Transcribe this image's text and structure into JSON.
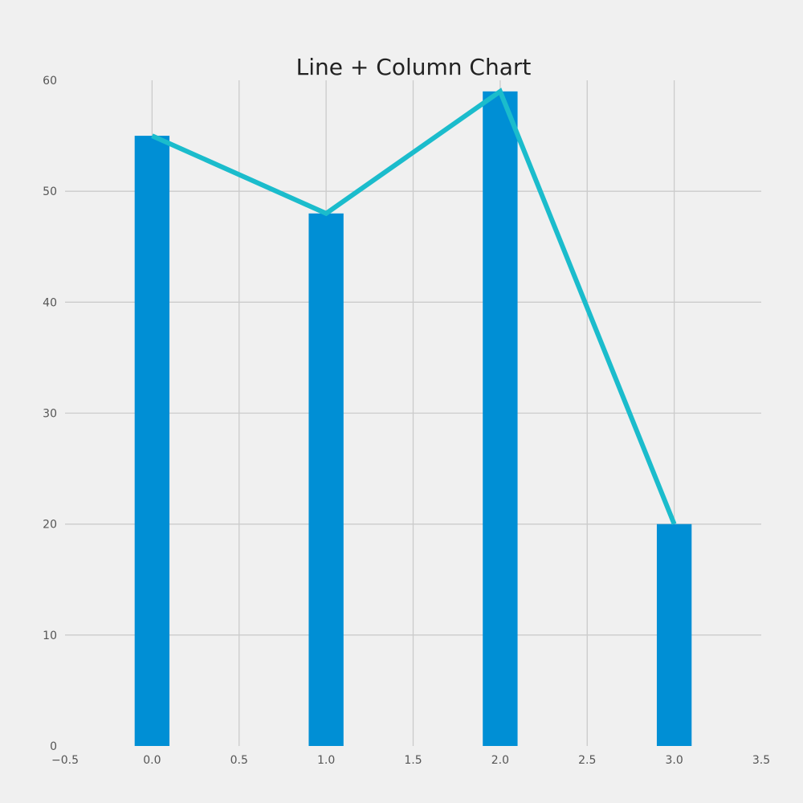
{
  "chart_data": {
    "type": "bar",
    "title": "Line + Column Chart",
    "xlabel": "",
    "ylabel": "",
    "x": [
      0,
      1,
      2,
      3
    ],
    "series": [
      {
        "kind": "bar",
        "values": [
          55,
          48,
          59,
          20
        ],
        "color": "#008fd5",
        "bar_width": 0.2
      },
      {
        "kind": "line",
        "values": [
          55,
          48,
          59,
          20
        ],
        "color": "#1bbccc"
      }
    ],
    "xlim": [
      -0.5,
      3.5
    ],
    "ylim": [
      0,
      60
    ],
    "xticks": [
      -0.5,
      0,
      0.5,
      1,
      1.5,
      2,
      2.5,
      3,
      3.5
    ],
    "xtick_labels": [
      "−0.5",
      "0.0",
      "0.5",
      "1.0",
      "1.5",
      "2.0",
      "2.5",
      "3.0",
      "3.5"
    ],
    "yticks": [
      0,
      10,
      20,
      30,
      40,
      50,
      60
    ],
    "ytick_labels": [
      "0",
      "10",
      "20",
      "30",
      "40",
      "50",
      "60"
    ],
    "grid": true,
    "legend": "none",
    "background": "#f0f0f0"
  }
}
